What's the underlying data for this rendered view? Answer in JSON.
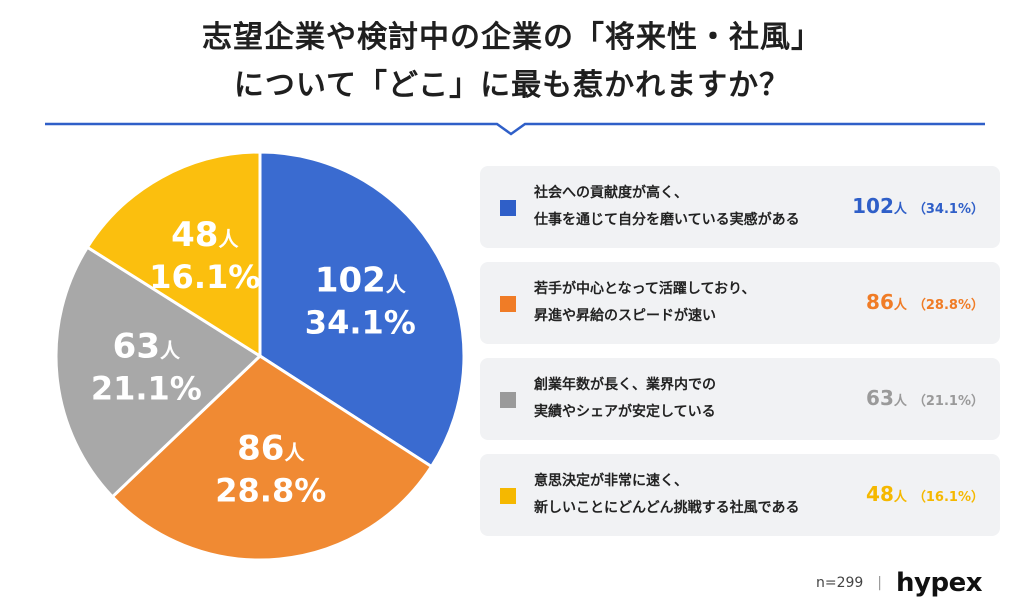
{
  "title": {
    "line1": "志望企業や検討中の企業の「将来性・社風」",
    "line2": "について「どこ」に最も惹かれますか？"
  },
  "chart_data": {
    "type": "pie",
    "categories": [
      "社会への貢献度が高く、仕事を通じて自分を磨いている実感がある",
      "若手が中心となって活躍しており、昇進や昇給のスピードが速い",
      "創業年数が長く、業界内での実績やシェアが安定している",
      "意思決定が非常に速く、新しいことにどんどん挑戦する社風である"
    ],
    "values": [
      102,
      86,
      63,
      48
    ],
    "percents": [
      "34.1%",
      "28.8%",
      "21.1%",
      "16.1%"
    ],
    "colors": [
      "#3a6bd0",
      "#f08a33",
      "#a8a8a8",
      "#fbbf0e"
    ],
    "unit": "人",
    "start": "12 o'clock, clockwise"
  },
  "legend": [
    {
      "line1": "社会への貢献度が高く、",
      "line2": "仕事を通じて自分を磨いている実感がある",
      "count": "102",
      "unit": "人",
      "pct": "（34.1%）",
      "color": "#2f5fc8"
    },
    {
      "line1": "若手が中心となって活躍しており、",
      "line2": "昇進や昇給のスピードが速い",
      "count": "86",
      "unit": "人",
      "pct": "（28.8%）",
      "color": "#f07c26"
    },
    {
      "line1": "創業年数が長く、業界内での",
      "line2": "実績やシェアが安定している",
      "count": "63",
      "unit": "人",
      "pct": "（21.1%）",
      "color": "#9a9a9a"
    },
    {
      "line1": "意思決定が非常に速く、",
      "line2": "新しいことにどんどん挑戦する社風である",
      "count": "48",
      "unit": "人",
      "pct": "（16.1%）",
      "color": "#f5b800"
    }
  ],
  "footer": {
    "n": "n=299",
    "sep": "|",
    "brand": "hypex"
  }
}
